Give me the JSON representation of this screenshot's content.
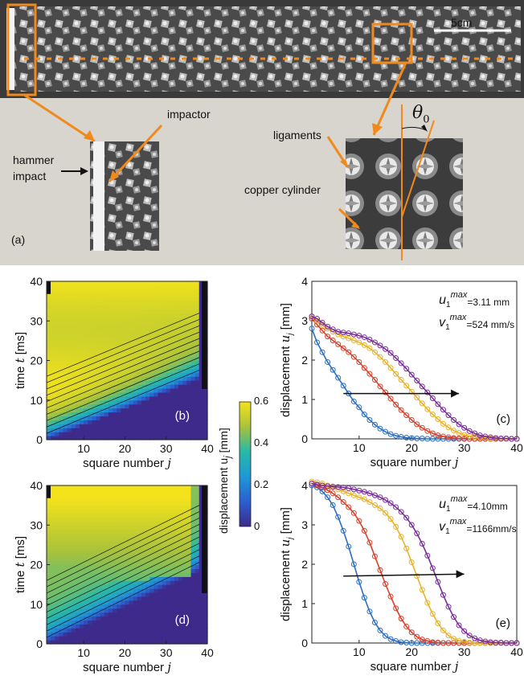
{
  "panel_a": {
    "panel_label": "(a)",
    "scale_bar": "5cm",
    "labels": {
      "impactor": "impactor",
      "hammer_line1": "hammer",
      "hammer_line2": "impact",
      "ligaments": "ligaments",
      "copper": "copper cylinder",
      "theta": "θ",
      "theta_sub": "0"
    },
    "colors": {
      "highlight": "#f08a1c",
      "background": "#d8d5cf"
    }
  },
  "colorbar": {
    "label": "displacement u",
    "label_sub": "j",
    "label_unit": " [mm]",
    "ticks": [
      "0.6",
      "0.4",
      "0.2",
      "0"
    ],
    "range": [
      0,
      0.6
    ]
  },
  "chart_data": [
    {
      "id": "b",
      "type": "heatmap",
      "panel_label": "(b)",
      "xlabel": "square number ",
      "xlabel_var": "j",
      "ylabel": "time ",
      "ylabel_var": "t",
      "ylabel_unit": " [ms]",
      "xticks": [
        "10",
        "20",
        "30",
        "40"
      ],
      "xtick_values": [
        10,
        20,
        30,
        40
      ],
      "yticks": [
        "0",
        "10",
        "20",
        "30",
        "40"
      ],
      "ytick_values": [
        0,
        10,
        20,
        30,
        40
      ],
      "xlim": [
        1,
        40
      ],
      "ylim": [
        0,
        40
      ],
      "front_slope": 0.42,
      "plateau": 0.58
    },
    {
      "id": "c",
      "type": "line",
      "panel_label": "(c)",
      "xlabel": "square number ",
      "xlabel_var": "j",
      "ylabel": "displacement ",
      "ylabel_var": "u",
      "ylabel_sub": "j",
      "ylabel_unit": " [mm]",
      "xticks": [
        "10",
        "20",
        "30",
        "40"
      ],
      "xtick_values": [
        10,
        20,
        30,
        40
      ],
      "yticks": [
        "0",
        "1",
        "2",
        "3",
        "4"
      ],
      "ytick_values": [
        0,
        1,
        2,
        3,
        4
      ],
      "xlim": [
        1,
        40
      ],
      "ylim": [
        0,
        4
      ],
      "annotation": {
        "u_var": "u",
        "u_sub": "1",
        "u_sup": "max",
        "u_val": "=3.11 mm",
        "v_var": "v",
        "v_sub": "1",
        "v_sup": "max",
        "v_val": "=524 mm/s"
      },
      "series": [
        {
          "color": "#2a6fc2",
          "x": [
            1,
            2,
            3,
            4,
            5,
            6,
            7,
            8,
            9,
            10,
            11,
            12,
            13,
            14,
            15,
            16,
            17,
            18,
            19,
            20,
            21,
            22,
            23,
            24,
            25,
            26,
            27,
            28,
            29,
            30,
            31,
            32,
            33,
            34,
            35,
            36,
            37,
            38,
            39,
            40
          ],
          "y": [
            2.8,
            2.45,
            2.2,
            1.95,
            1.75,
            1.55,
            1.35,
            1.15,
            0.95,
            0.8,
            0.62,
            0.48,
            0.36,
            0.26,
            0.18,
            0.12,
            0.08,
            0.05,
            0.03,
            0.02,
            0.01,
            0.01,
            0,
            0,
            0,
            0,
            0,
            0,
            0,
            0,
            0,
            0,
            0,
            0,
            0,
            0,
            0,
            0,
            0,
            0
          ]
        },
        {
          "color": "#d8402a",
          "x": [
            1,
            2,
            3,
            4,
            5,
            6,
            7,
            8,
            9,
            10,
            11,
            12,
            13,
            14,
            15,
            16,
            17,
            18,
            19,
            20,
            21,
            22,
            23,
            24,
            25,
            26,
            27,
            28,
            29,
            30,
            31,
            32,
            33,
            34,
            35,
            36,
            37,
            38,
            39,
            40
          ],
          "y": [
            3.05,
            2.9,
            2.75,
            2.6,
            2.5,
            2.4,
            2.3,
            2.2,
            2.08,
            1.95,
            1.8,
            1.65,
            1.5,
            1.33,
            1.18,
            1.02,
            0.87,
            0.73,
            0.6,
            0.48,
            0.37,
            0.28,
            0.2,
            0.14,
            0.09,
            0.06,
            0.04,
            0.02,
            0.01,
            0.01,
            0,
            0,
            0,
            0,
            0,
            0,
            0,
            0,
            0,
            0
          ]
        },
        {
          "color": "#e8b22a",
          "x": [
            1,
            2,
            3,
            4,
            5,
            6,
            7,
            8,
            9,
            10,
            11,
            12,
            13,
            14,
            15,
            16,
            17,
            18,
            19,
            20,
            21,
            22,
            23,
            24,
            25,
            26,
            27,
            28,
            29,
            30,
            31,
            32,
            33,
            34,
            35,
            36,
            37,
            38,
            39,
            40
          ],
          "y": [
            3.1,
            3.0,
            2.9,
            2.8,
            2.72,
            2.65,
            2.6,
            2.55,
            2.5,
            2.45,
            2.38,
            2.3,
            2.2,
            2.08,
            1.95,
            1.8,
            1.65,
            1.5,
            1.35,
            1.2,
            1.05,
            0.9,
            0.75,
            0.62,
            0.5,
            0.38,
            0.29,
            0.21,
            0.15,
            0.1,
            0.07,
            0.05,
            0.03,
            0.02,
            0.01,
            0.01,
            0,
            0,
            0,
            0
          ]
        },
        {
          "color": "#7a2d9a",
          "x": [
            1,
            2,
            3,
            4,
            5,
            6,
            7,
            8,
            9,
            10,
            11,
            12,
            13,
            14,
            15,
            16,
            17,
            18,
            19,
            20,
            21,
            22,
            23,
            24,
            25,
            26,
            27,
            28,
            29,
            30,
            31,
            32,
            33,
            34,
            35,
            36,
            37,
            38,
            39,
            40
          ],
          "y": [
            3.11,
            3.05,
            2.95,
            2.85,
            2.78,
            2.72,
            2.7,
            2.68,
            2.65,
            2.62,
            2.58,
            2.52,
            2.45,
            2.37,
            2.28,
            2.18,
            2.05,
            1.92,
            1.78,
            1.63,
            1.48,
            1.33,
            1.18,
            1.03,
            0.88,
            0.74,
            0.6,
            0.48,
            0.37,
            0.28,
            0.2,
            0.14,
            0.09,
            0.06,
            0.04,
            0.02,
            0.01,
            0.01,
            0,
            0
          ]
        }
      ]
    },
    {
      "id": "d",
      "type": "heatmap",
      "panel_label": "(d)",
      "xlabel": "square number ",
      "xlabel_var": "j",
      "ylabel": "time ",
      "ylabel_var": "t",
      "ylabel_unit": " [ms]",
      "xticks": [
        "10",
        "20",
        "30",
        "40"
      ],
      "xtick_values": [
        10,
        20,
        30,
        40
      ],
      "yticks": [
        "0",
        "10",
        "20",
        "30",
        "40"
      ],
      "ytick_values": [
        0,
        10,
        20,
        30,
        40
      ],
      "xlim": [
        1,
        40
      ],
      "ylim": [
        0,
        40
      ],
      "front_slope": 0.5,
      "plateau": 0.45
    },
    {
      "id": "e",
      "type": "line",
      "panel_label": "(e)",
      "xlabel": "square number ",
      "xlabel_var": "j",
      "ylabel": "displacement ",
      "ylabel_var": "u",
      "ylabel_sub": "j",
      "ylabel_unit": " [mm]",
      "xticks": [
        "10",
        "20",
        "30",
        "40"
      ],
      "xtick_values": [
        10,
        20,
        30,
        40
      ],
      "yticks": [
        "0",
        "1",
        "2",
        "3",
        "4"
      ],
      "ytick_values": [
        0,
        1,
        2,
        3,
        4
      ],
      "xlim": [
        1,
        40
      ],
      "ylim": [
        0,
        4
      ],
      "annotation": {
        "u_var": "u",
        "u_sub": "1",
        "u_sup": "max",
        "u_val": "=4.10mm",
        "v_var": "v",
        "v_sub": "1",
        "v_sup": "max",
        "v_val": "=1166mm/s"
      },
      "series": [
        {
          "color": "#2a6fc2",
          "x": [
            1,
            2,
            3,
            4,
            5,
            6,
            7,
            8,
            9,
            10,
            11,
            12,
            13,
            14,
            15,
            16,
            17,
            18,
            19,
            20,
            21,
            22,
            23,
            24,
            25,
            26,
            27,
            28,
            29,
            30,
            31,
            32,
            33,
            34,
            35,
            36,
            37,
            38,
            39,
            40
          ],
          "y": [
            4.0,
            3.95,
            3.85,
            3.7,
            3.5,
            3.2,
            2.85,
            2.45,
            2.0,
            1.55,
            1.15,
            0.8,
            0.52,
            0.32,
            0.18,
            0.1,
            0.05,
            0.02,
            0.01,
            0,
            0,
            0,
            0,
            0,
            0,
            0,
            0,
            0,
            0,
            0,
            0,
            0,
            0,
            0,
            0,
            0,
            0,
            0,
            0,
            0
          ]
        },
        {
          "color": "#d8402a",
          "x": [
            1,
            2,
            3,
            4,
            5,
            6,
            7,
            8,
            9,
            10,
            11,
            12,
            13,
            14,
            15,
            16,
            17,
            18,
            19,
            20,
            21,
            22,
            23,
            24,
            25,
            26,
            27,
            28,
            29,
            30,
            31,
            32,
            33,
            34,
            35,
            36,
            37,
            38,
            39,
            40
          ],
          "y": [
            4.05,
            4.0,
            3.95,
            3.88,
            3.8,
            3.7,
            3.58,
            3.45,
            3.3,
            3.1,
            2.85,
            2.55,
            2.2,
            1.85,
            1.5,
            1.18,
            0.88,
            0.62,
            0.42,
            0.27,
            0.16,
            0.09,
            0.05,
            0.02,
            0.01,
            0,
            0,
            0,
            0,
            0,
            0,
            0,
            0,
            0,
            0,
            0,
            0,
            0,
            0,
            0
          ]
        },
        {
          "color": "#e8b22a",
          "x": [
            1,
            2,
            3,
            4,
            5,
            6,
            7,
            8,
            9,
            10,
            11,
            12,
            13,
            14,
            15,
            16,
            17,
            18,
            19,
            20,
            21,
            22,
            23,
            24,
            25,
            26,
            27,
            28,
            29,
            30,
            31,
            32,
            33,
            34,
            35,
            36,
            37,
            38,
            39,
            40
          ],
          "y": [
            4.1,
            4.08,
            4.05,
            4.0,
            3.95,
            3.9,
            3.85,
            3.8,
            3.75,
            3.7,
            3.65,
            3.58,
            3.5,
            3.42,
            3.3,
            3.15,
            2.95,
            2.7,
            2.4,
            2.05,
            1.7,
            1.35,
            1.02,
            0.74,
            0.5,
            0.32,
            0.19,
            0.11,
            0.06,
            0.03,
            0.01,
            0,
            0,
            0,
            0,
            0,
            0,
            0,
            0,
            0
          ]
        },
        {
          "color": "#7a2d9a",
          "x": [
            1,
            2,
            3,
            4,
            5,
            6,
            7,
            8,
            9,
            10,
            11,
            12,
            13,
            14,
            15,
            16,
            17,
            18,
            19,
            20,
            21,
            22,
            23,
            24,
            25,
            26,
            27,
            28,
            29,
            30,
            31,
            32,
            33,
            34,
            35,
            36,
            37,
            38,
            39,
            40
          ],
          "y": [
            4.05,
            4.02,
            4.0,
            3.98,
            3.97,
            3.96,
            3.95,
            3.93,
            3.9,
            3.87,
            3.84,
            3.8,
            3.75,
            3.7,
            3.63,
            3.55,
            3.45,
            3.33,
            3.18,
            3.0,
            2.78,
            2.52,
            2.22,
            1.9,
            1.55,
            1.22,
            0.92,
            0.66,
            0.45,
            0.3,
            0.19,
            0.12,
            0.07,
            0.04,
            0.02,
            0.01,
            0.01,
            0,
            0,
            0
          ]
        }
      ]
    }
  ]
}
